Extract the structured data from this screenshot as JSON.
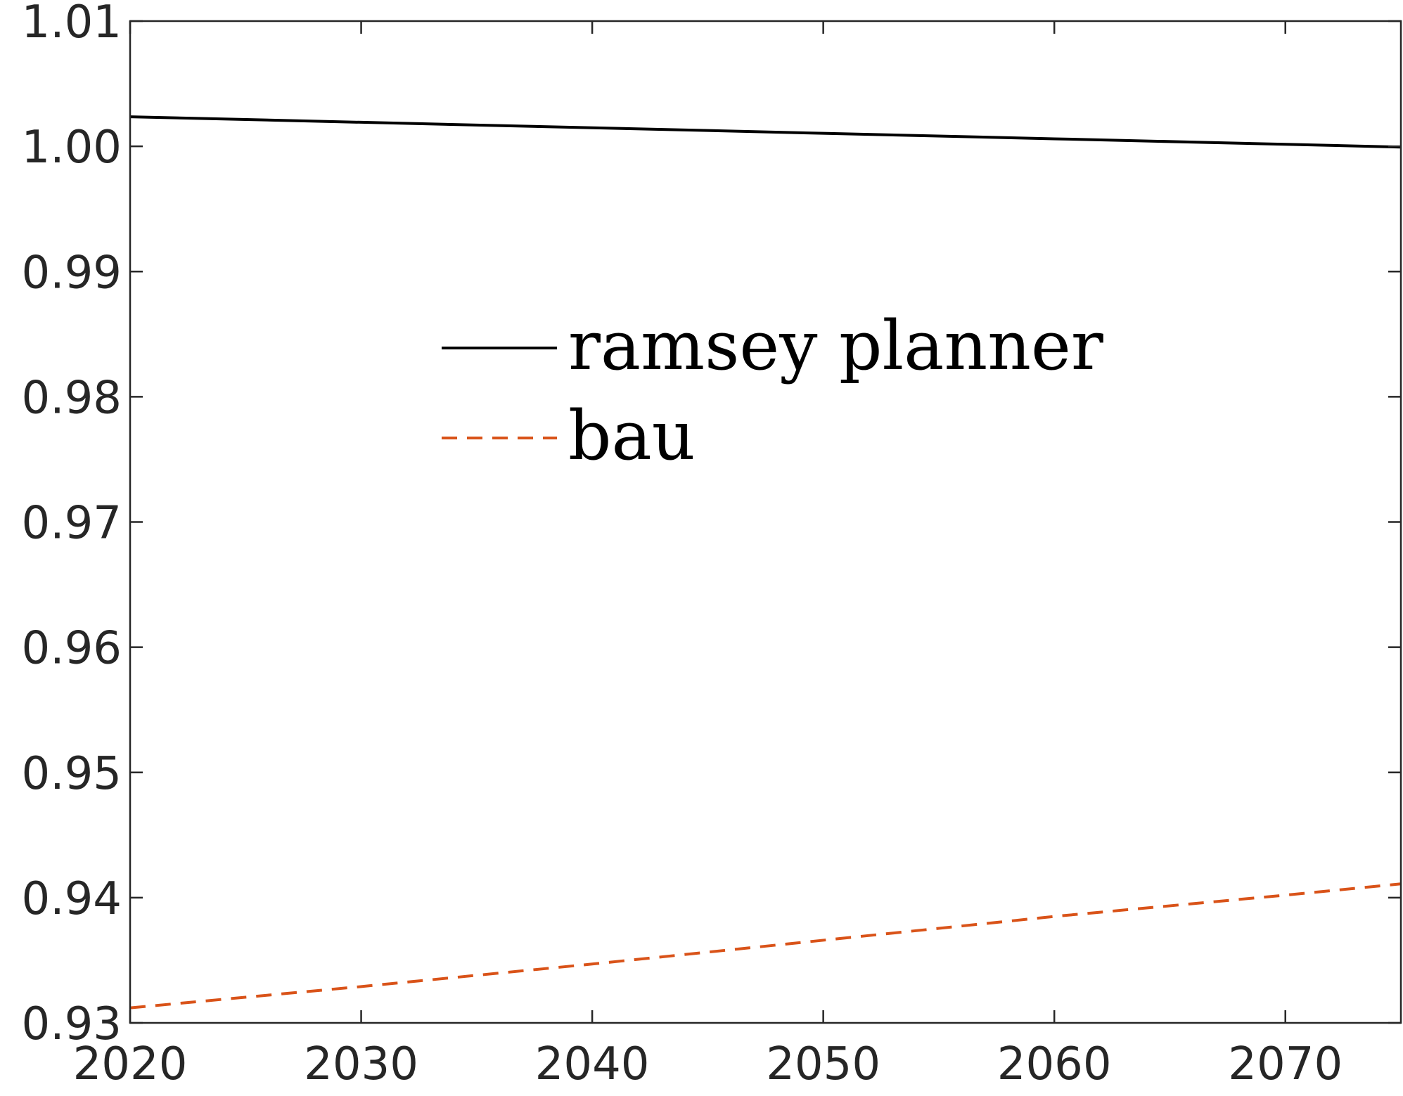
{
  "chart_data": {
    "type": "line",
    "title": "",
    "xlabel": "",
    "ylabel": "",
    "xlim": [
      2020,
      2075
    ],
    "ylim": [
      0.93,
      1.01
    ],
    "x_ticks": [
      2020,
      2030,
      2040,
      2050,
      2060,
      2070
    ],
    "x_tick_labels": [
      "2020",
      "2030",
      "2040",
      "2050",
      "2060",
      "2070"
    ],
    "y_ticks": [
      0.93,
      0.94,
      0.95,
      0.96,
      0.97,
      0.98,
      0.99,
      1.0,
      1.01
    ],
    "y_tick_labels": [
      "0.93",
      "0.94",
      "0.95",
      "0.96",
      "0.97",
      "0.98",
      "0.99",
      "1.00",
      "1.01"
    ],
    "grid": false,
    "legend": {
      "position": "upper-center",
      "box": false
    },
    "series": [
      {
        "name": "ramsey planner",
        "color": "#000000",
        "line_style": "solid",
        "x": [
          2020,
          2030,
          2040,
          2050,
          2060,
          2070,
          2075
        ],
        "y": [
          1.00236,
          1.00192,
          1.00148,
          1.00104,
          1.0006,
          1.00016,
          0.99994
        ]
      },
      {
        "name": "bau",
        "color": "#D95319",
        "line_style": "dashed",
        "x": [
          2020,
          2030,
          2040,
          2050,
          2060,
          2070,
          2075
        ],
        "y": [
          0.9312,
          0.9329,
          0.9347,
          0.9366,
          0.9385,
          0.9402,
          0.9411
        ]
      }
    ]
  }
}
